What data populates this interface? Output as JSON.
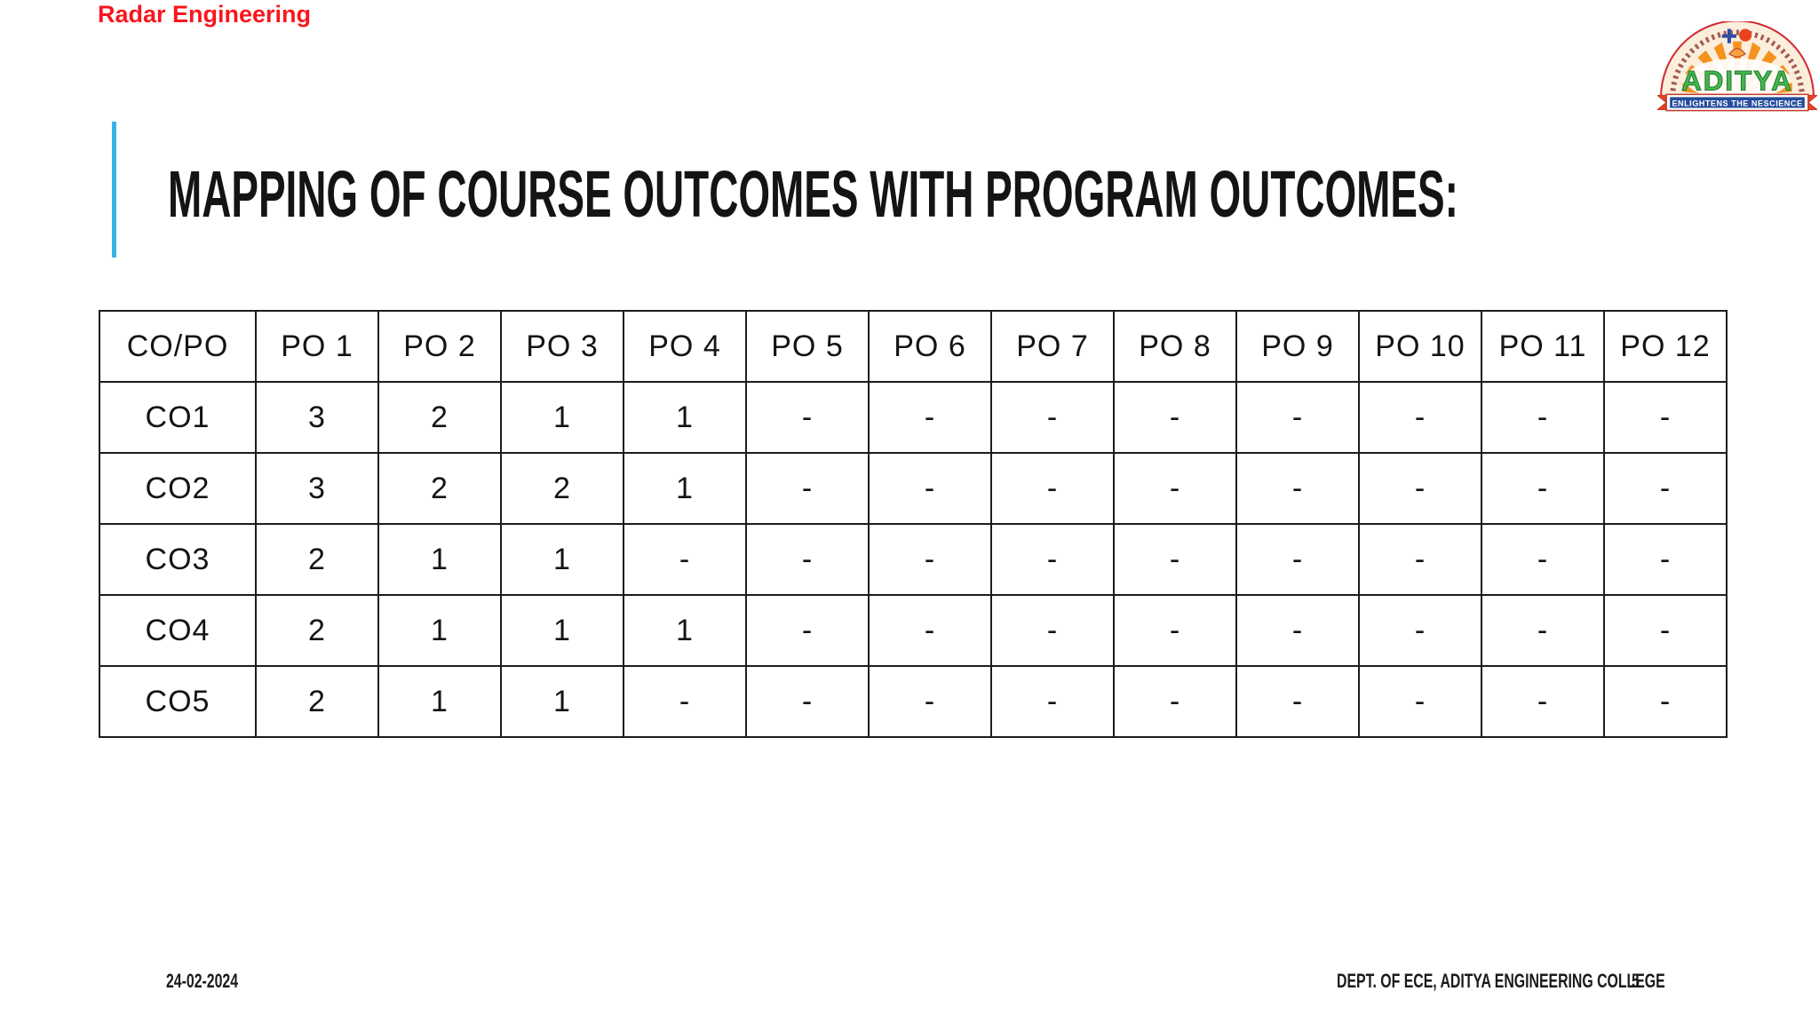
{
  "header": {
    "course_label": "Radar Engineering"
  },
  "logo": {
    "name": "ADITYA",
    "tagline": "ENLIGHTENS THE NESCIENCE"
  },
  "title": "MAPPING OF COURSE OUTCOMES WITH PROGRAM OUTCOMES:",
  "table": {
    "columns": [
      "CO/PO",
      "PO 1",
      "PO 2",
      "PO 3",
      "PO 4",
      "PO 5",
      "PO 6",
      "PO 7",
      "PO 8",
      "PO 9",
      "PO 10",
      "PO 11",
      "PO 12"
    ],
    "rows": [
      {
        "label": "CO1",
        "values": [
          "3",
          "2",
          "1",
          "1",
          "-",
          "-",
          "-",
          "-",
          "-",
          "-",
          "-",
          "-"
        ]
      },
      {
        "label": "CO2",
        "values": [
          "3",
          "2",
          "2",
          "1",
          "-",
          "-",
          "-",
          "-",
          "-",
          "-",
          "-",
          "-"
        ]
      },
      {
        "label": "CO3",
        "values": [
          "2",
          "1",
          "1",
          "-",
          "-",
          "-",
          "-",
          "-",
          "-",
          "-",
          "-",
          "-"
        ]
      },
      {
        "label": "CO4",
        "values": [
          "2",
          "1",
          "1",
          "1",
          "-",
          "-",
          "-",
          "-",
          "-",
          "-",
          "-",
          "-"
        ]
      },
      {
        "label": "CO5",
        "values": [
          "2",
          "1",
          "1",
          "-",
          "-",
          "-",
          "-",
          "-",
          "-",
          "-",
          "-",
          "-"
        ]
      }
    ]
  },
  "footer": {
    "date": "24-02-2024",
    "department": "DEPT. OF ECE, ADITYA ENGINEERING COLLEGE",
    "page": "5"
  },
  "colors": {
    "accent_bar": "#35b4e5",
    "course_label_red": "#f9161d",
    "logo_orange": "#f6921e",
    "logo_green": "#45b649",
    "logo_banner_blue": "#264d9c"
  }
}
